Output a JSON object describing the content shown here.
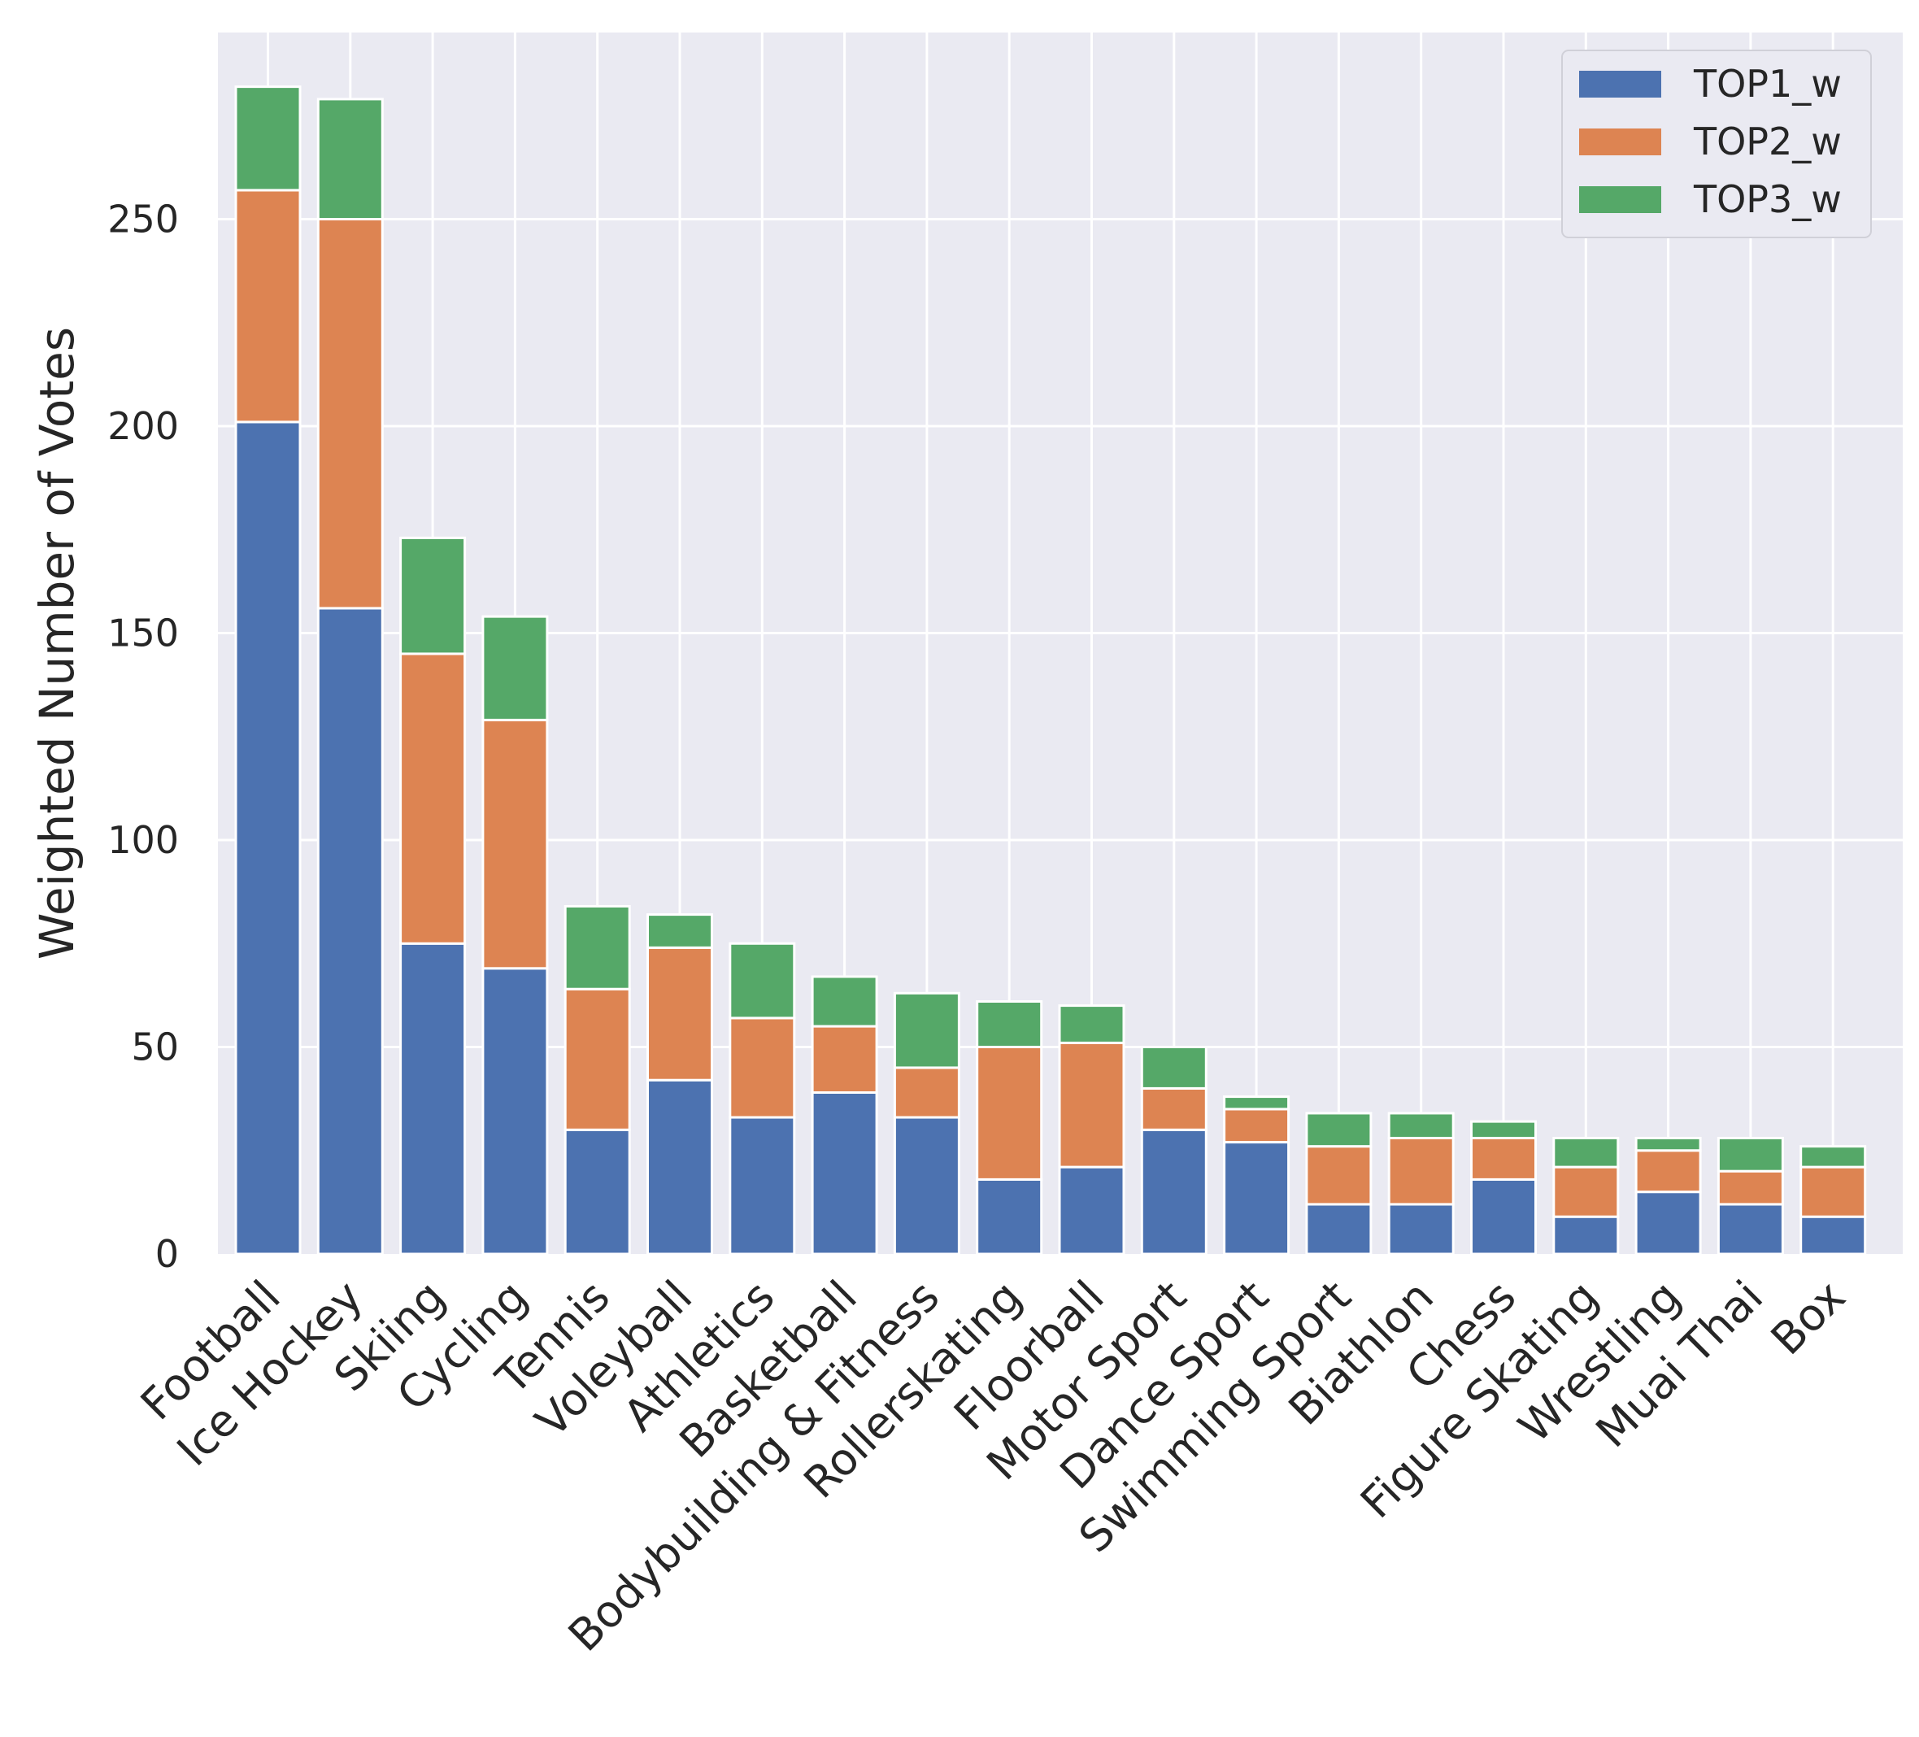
{
  "chart_data": {
    "type": "bar",
    "stacked": true,
    "title": "",
    "xlabel": "",
    "ylabel": "Weighted Number of Votes",
    "ylim": [
      0,
      285
    ],
    "yticks": [
      0,
      50,
      100,
      150,
      200,
      250
    ],
    "grid": true,
    "legend_position": "top-right",
    "categories": [
      "Football",
      "Ice Hockey",
      "Skiing",
      "Cycling",
      "Tennis",
      "Voleyball",
      "Athletics",
      "Basketball",
      "Bodybuilding & Fitness",
      "Rollerskating",
      "Floorball",
      "Motor Sport",
      "Dance Sport",
      "Swimming Sport",
      "Biathlon",
      "Chess",
      "Figure Skating",
      "Wrestling",
      "Muai Thai",
      "Box"
    ],
    "series": [
      {
        "name": "TOP1_w",
        "color": "#4c72b0",
        "values": [
          201,
          156,
          75,
          69,
          30,
          42,
          33,
          39,
          33,
          18,
          21,
          30,
          27,
          12,
          12,
          18,
          9,
          15,
          12,
          9
        ]
      },
      {
        "name": "TOP2_w",
        "color": "#dd8452",
        "values": [
          56,
          94,
          70,
          60,
          34,
          32,
          24,
          16,
          12,
          32,
          30,
          10,
          8,
          14,
          16,
          10,
          12,
          10,
          8,
          12
        ]
      },
      {
        "name": "TOP3_w",
        "color": "#55a868",
        "values": [
          25,
          29,
          28,
          25,
          20,
          8,
          18,
          12,
          18,
          11,
          9,
          10,
          3,
          8,
          6,
          4,
          7,
          3,
          8,
          5
        ]
      }
    ]
  }
}
